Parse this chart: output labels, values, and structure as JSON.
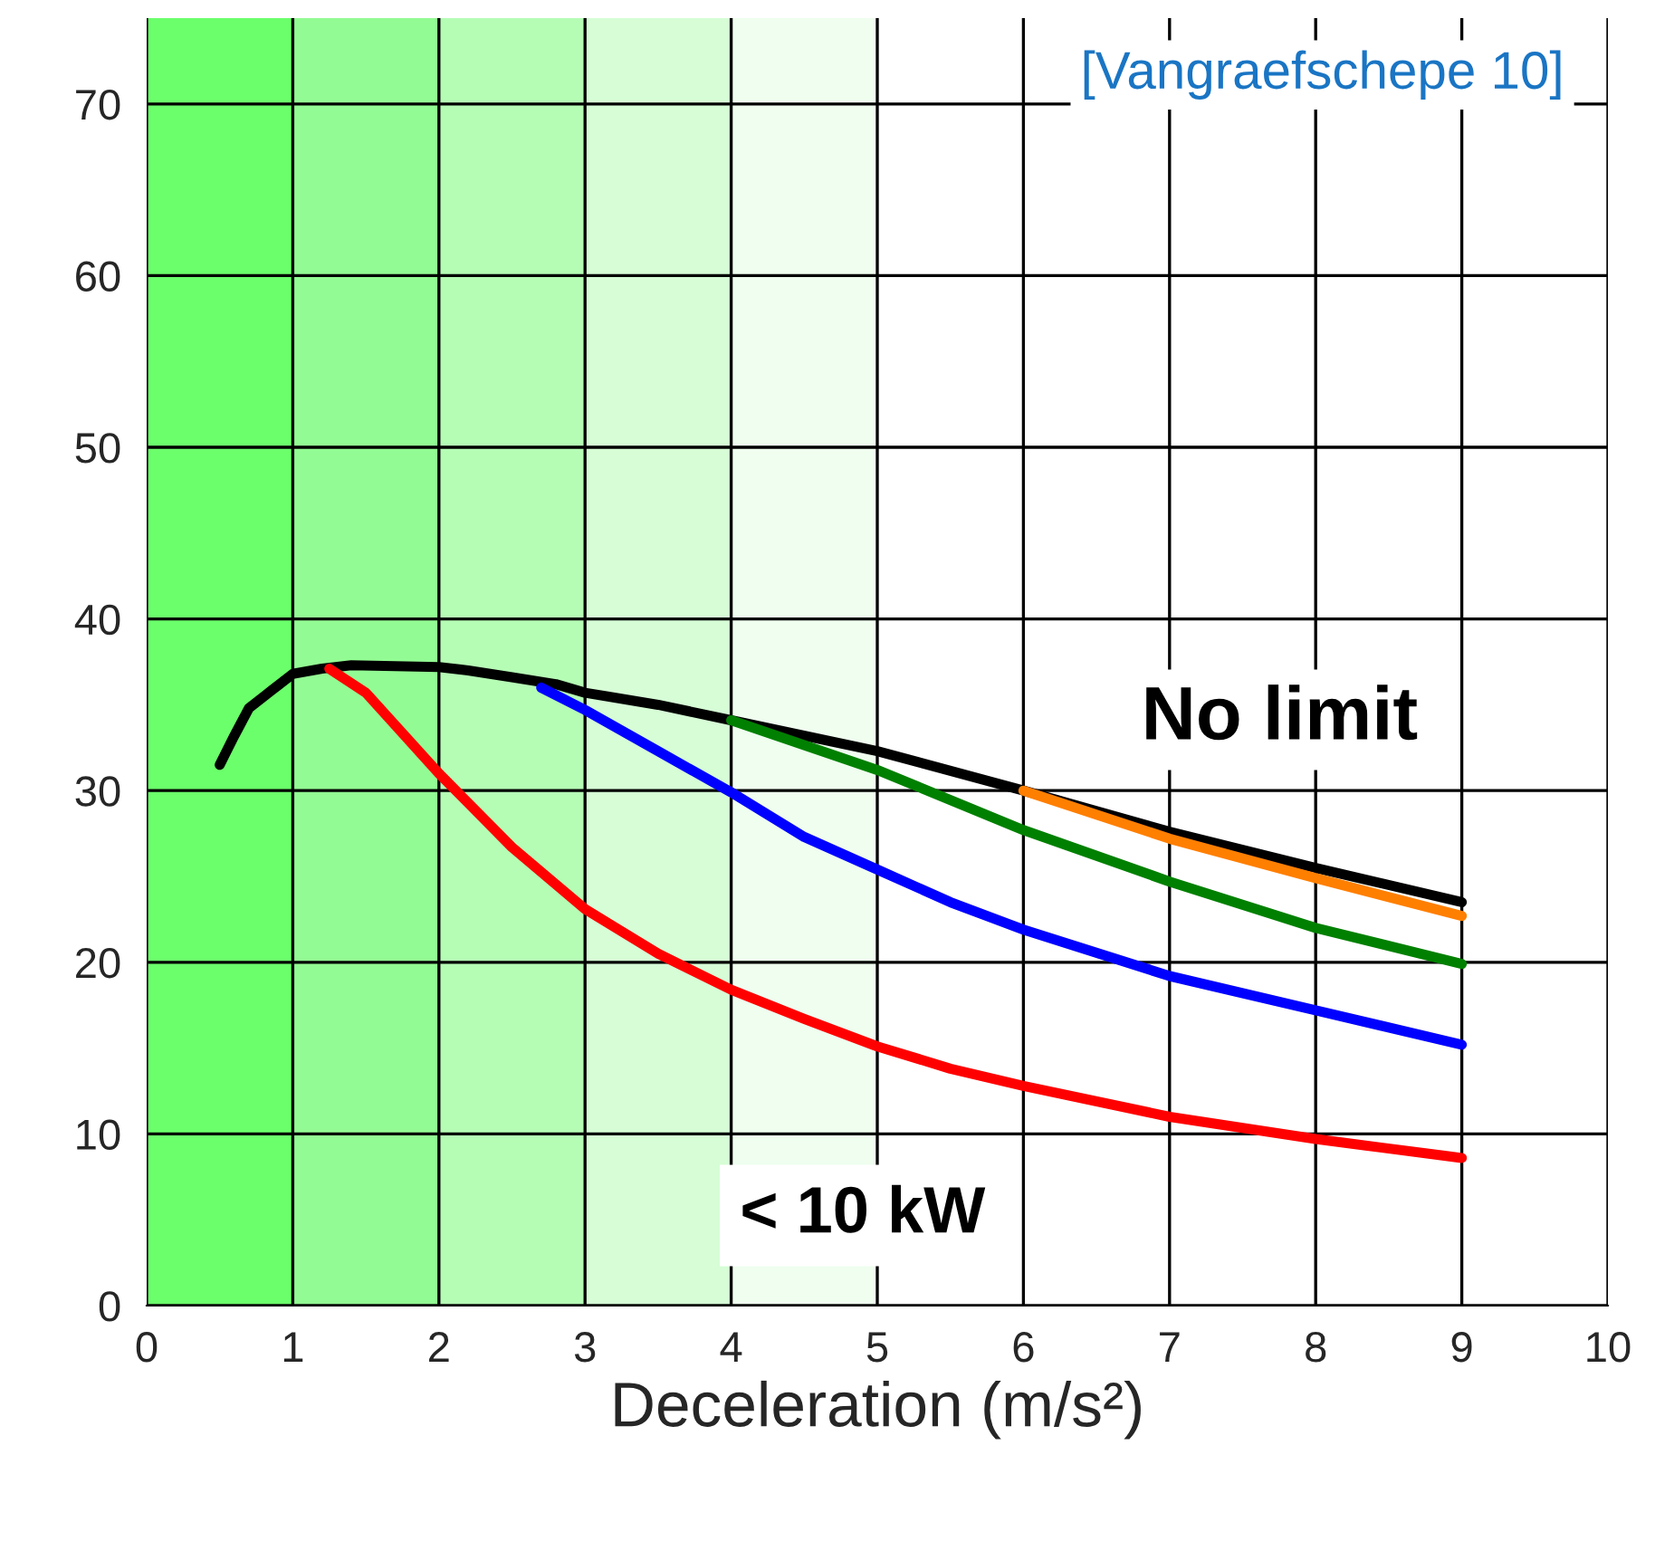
{
  "chart_data": {
    "type": "line",
    "xlabel": "Deceleration (m/s²)",
    "xlim": [
      0,
      10
    ],
    "xticks": [
      0,
      1,
      2,
      3,
      4,
      5,
      6,
      7,
      8,
      9,
      10
    ],
    "ylim": [
      0,
      75
    ],
    "yticks": [
      0,
      10,
      20,
      30,
      40,
      50,
      60,
      70
    ],
    "grid": true,
    "legend": false,
    "marker": "none",
    "line_style": "solid",
    "bands": [
      {
        "axis": "x",
        "from": 0,
        "to": 1,
        "color": "#6bff6b"
      },
      {
        "axis": "x",
        "from": 1,
        "to": 2,
        "color": "#93fb93"
      },
      {
        "axis": "x",
        "from": 2,
        "to": 3,
        "color": "#b5fcb5"
      },
      {
        "axis": "x",
        "from": 3,
        "to": 4,
        "color": "#d6fdd6"
      },
      {
        "axis": "x",
        "from": 4,
        "to": 5,
        "color": "#effeef"
      }
    ],
    "series": [
      {
        "color": "#000000",
        "x": [
          0.5,
          0.6,
          0.7,
          0.85,
          1.0,
          1.2,
          1.4,
          2.0,
          2.2,
          2.5,
          2.8,
          3.0,
          3.5,
          4.0,
          5,
          6,
          7,
          8,
          9
        ],
        "values": [
          31.5,
          33.2,
          34.8,
          35.8,
          36.8,
          37.1,
          37.3,
          37.2,
          37.0,
          36.6,
          36.2,
          35.7,
          35.0,
          34.1,
          32.3,
          30.0,
          27.6,
          25.5,
          23.5
        ]
      },
      {
        "color": "#ff0000",
        "x": [
          1.25,
          1.5,
          2,
          2.5,
          3,
          3.5,
          4,
          4.5,
          5,
          5.5,
          6,
          7,
          8,
          9
        ],
        "values": [
          37.1,
          35.7,
          31.0,
          26.7,
          23.1,
          20.5,
          18.4,
          16.7,
          15.1,
          13.8,
          12.8,
          11.0,
          9.7,
          8.6
        ]
      },
      {
        "color": "#0000ff",
        "x": [
          2.7,
          3,
          3.5,
          4,
          4.5,
          5,
          5.5,
          6,
          7,
          8,
          9
        ],
        "values": [
          36.0,
          34.7,
          32.3,
          29.9,
          27.3,
          25.4,
          23.5,
          21.9,
          19.2,
          17.2,
          15.2
        ]
      },
      {
        "color": "#008000",
        "x": [
          4,
          5,
          6,
          7,
          8,
          9
        ],
        "values": [
          34.1,
          31.2,
          27.7,
          24.7,
          22.0,
          19.9
        ]
      },
      {
        "color": "#ff7f00",
        "x": [
          6,
          7,
          8,
          9
        ],
        "values": [
          30.0,
          27.2,
          24.9,
          22.7
        ]
      }
    ],
    "annotations": [
      "[Vangraefschepe 10]",
      "No limit",
      "< 10 kW"
    ]
  }
}
